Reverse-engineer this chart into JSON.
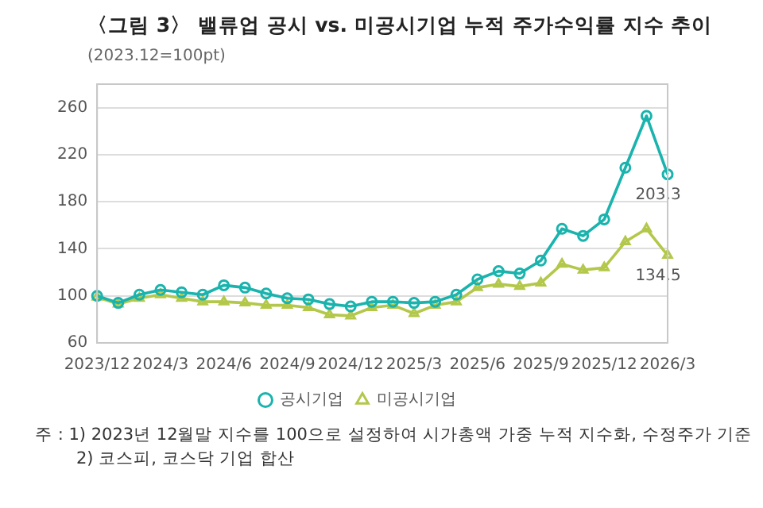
{
  "chart_data": {
    "type": "line",
    "title": "〈그림 3〉 밸류업 공시 vs. 미공시기업 누적 주가수익률 지수 추이",
    "subtitle": "(2023.12=100pt)",
    "categories": [
      "2023/12",
      null,
      null,
      "2024/3",
      null,
      null,
      "2024/6",
      null,
      null,
      "2024/9",
      null,
      null,
      "2024/12",
      null,
      null,
      "2025/3",
      null,
      null,
      "2025/6",
      null,
      null,
      "2025/9",
      null,
      null,
      "2025/12",
      null,
      null,
      "2026/3"
    ],
    "series": [
      {
        "name": "공시기업",
        "color": "#1ab3ad",
        "marker": "circle",
        "values": [
          100,
          94,
          101,
          105,
          103,
          101,
          109,
          107,
          102,
          98,
          97,
          93,
          91,
          95,
          95,
          94,
          95,
          101,
          114,
          121,
          119,
          130,
          157,
          151,
          165,
          209,
          253,
          203.3
        ],
        "value_labels": [
          null,
          null,
          null,
          null,
          null,
          null,
          null,
          null,
          null,
          null,
          null,
          null,
          null,
          null,
          null,
          null,
          null,
          null,
          null,
          null,
          null,
          null,
          null,
          null,
          null,
          null,
          null,
          "203.3"
        ]
      },
      {
        "name": "미공시기업",
        "color": "#b3c84a",
        "marker": "triangle",
        "values": [
          99,
          93,
          98,
          101,
          98,
          95,
          95,
          94,
          92,
          92,
          90,
          84,
          83,
          90,
          92,
          85,
          92,
          95,
          107,
          110,
          108,
          111,
          127,
          122,
          124,
          146,
          157,
          134.5
        ],
        "value_labels": [
          null,
          null,
          null,
          null,
          null,
          null,
          null,
          null,
          null,
          null,
          null,
          null,
          null,
          null,
          null,
          null,
          null,
          null,
          null,
          null,
          null,
          null,
          null,
          null,
          null,
          null,
          null,
          "134.5"
        ]
      }
    ],
    "ylim": [
      60,
      280
    ],
    "yticks": [
      60,
      100,
      140,
      180,
      220,
      260
    ],
    "grid": "y",
    "legend": "bottom",
    "annotations": [
      "주 : 1) 2023년 12월말 지수를 100으로 설정하여 시가총액 가중 누적 지수화, 수정주가 기준",
      "2) 코스피, 코스닥 기업 합산"
    ]
  }
}
